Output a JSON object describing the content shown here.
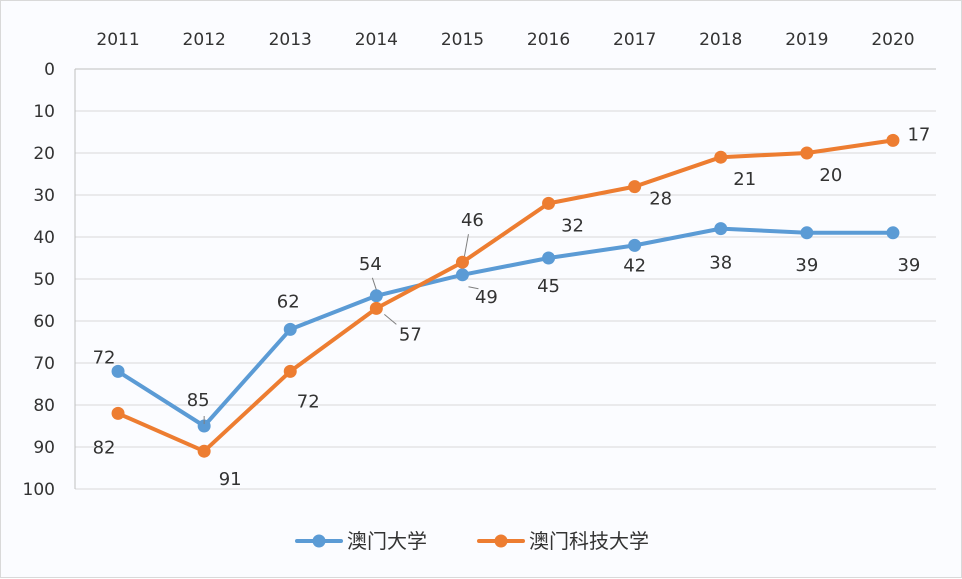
{
  "chart_data": {
    "type": "line",
    "categories": [
      "2011",
      "2012",
      "2013",
      "2014",
      "2015",
      "2016",
      "2017",
      "2018",
      "2019",
      "2020"
    ],
    "y_reversed": true,
    "ylim": [
      0,
      100
    ],
    "yticks": [
      "0",
      "10",
      "20",
      "30",
      "40",
      "50",
      "60",
      "70",
      "80",
      "90",
      "100"
    ],
    "x_axis_position": "top",
    "grid": true,
    "legend_position": "bottom",
    "series": [
      {
        "name": "澳门大学",
        "color": "#5B9BD5",
        "values": [
          72,
          85,
          62,
          54,
          49,
          45,
          42,
          38,
          39,
          39
        ]
      },
      {
        "name": "澳门科技大学",
        "color": "#ED7D31",
        "values": [
          82,
          91,
          72,
          57,
          46,
          32,
          28,
          21,
          20,
          17
        ]
      }
    ]
  }
}
